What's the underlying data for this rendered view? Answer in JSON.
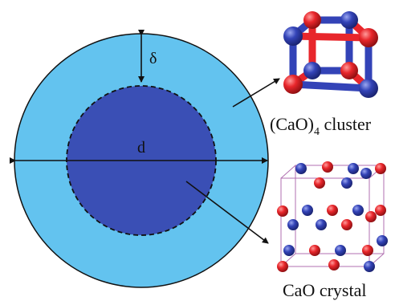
{
  "diagram": {
    "labels": {
      "delta": "δ",
      "diameter": "d",
      "cluster_prefix": "(CaO)",
      "cluster_subscript": "4",
      "cluster_suffix": " cluster",
      "crystal": "CaO crystal"
    },
    "colors": {
      "shell": "#63c3ef",
      "core": "#3a4fb5",
      "outline": "#111111",
      "calcium_atom": "#e8262b",
      "oxygen_atom": "#3343b7",
      "lattice_line": "#b06fb0"
    }
  }
}
